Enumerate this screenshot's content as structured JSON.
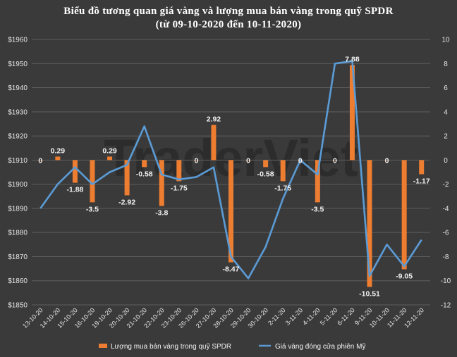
{
  "title_line1": "Biểu đồ tương quan giá vàng và lượng mua bán vàng trong quỹ SPDR",
  "title_line2": "(từ 09-10-2020 đến 10-11-2020)",
  "watermark": "TraderViet",
  "colors": {
    "background": "#3a3a3a",
    "bar": "#ed7d31",
    "line": "#5b9bd5",
    "grid": "#5e5e5e",
    "text": "#e6e6e6"
  },
  "chart_data": {
    "type": "bar+line",
    "categories": [
      "13-10-20",
      "14-10-20",
      "15-10-20",
      "16-10-20",
      "19-10-20",
      "20-10-20",
      "21-10-20",
      "22-10-20",
      "23-10-20",
      "26-10-20",
      "27-10-20",
      "28-10-20",
      "29-10-20",
      "30-10-20",
      "2-11-20",
      "3-11-20",
      "4-11-20",
      "5-11-20",
      "6-11-20",
      "9-11-20",
      "10-11-20",
      "11-11-20",
      "12-11-20"
    ],
    "series": [
      {
        "name": "Lượng mua bán vàng trong quỹ SPDR",
        "type": "bar",
        "axis": "right",
        "values": [
          0,
          0.29,
          -1.88,
          -3.5,
          0.29,
          -2.92,
          -0.58,
          -3.8,
          -1.75,
          0,
          2.92,
          -8.47,
          0,
          -0.58,
          -1.75,
          0,
          -3.5,
          0,
          7.88,
          -10.51,
          0,
          -9.05,
          -1.17
        ],
        "labels": [
          "0",
          "0.29",
          "-1.88",
          "-3.5",
          "0.29",
          "-2.92",
          "-0.58",
          "-3.8",
          "-1.75",
          "0",
          "2.92",
          "-8.47",
          "0",
          "-0.58",
          "-1.75",
          "0",
          "-3.5",
          "0",
          "7.88",
          "-10.51",
          "0",
          "-9.05",
          "-1.17"
        ]
      },
      {
        "name": "Giá vàng đóng cửa phiên Mỹ",
        "type": "line",
        "axis": "left",
        "values": [
          1890,
          1900,
          1907,
          1900,
          1905,
          1908,
          1924,
          1904,
          1902,
          1903,
          1907,
          1870,
          1861,
          1874,
          1894,
          1910,
          1904,
          1950,
          1951,
          1862,
          1875,
          1866,
          1877
        ]
      }
    ],
    "y_left": {
      "range": [
        1850,
        1960
      ],
      "ticks": [
        "$1850",
        "$1860",
        "$1870",
        "$1880",
        "$1890",
        "$1900",
        "$1910",
        "$1920",
        "$1930",
        "$1940",
        "$1950",
        "$1960"
      ]
    },
    "y_right": {
      "range": [
        -12,
        10
      ],
      "ticks": [
        "-12",
        "-10",
        "-8",
        "-6",
        "-4",
        "-2",
        "0",
        "2",
        "4",
        "6",
        "8",
        "10"
      ]
    },
    "legend_position": "bottom",
    "grid": true
  }
}
